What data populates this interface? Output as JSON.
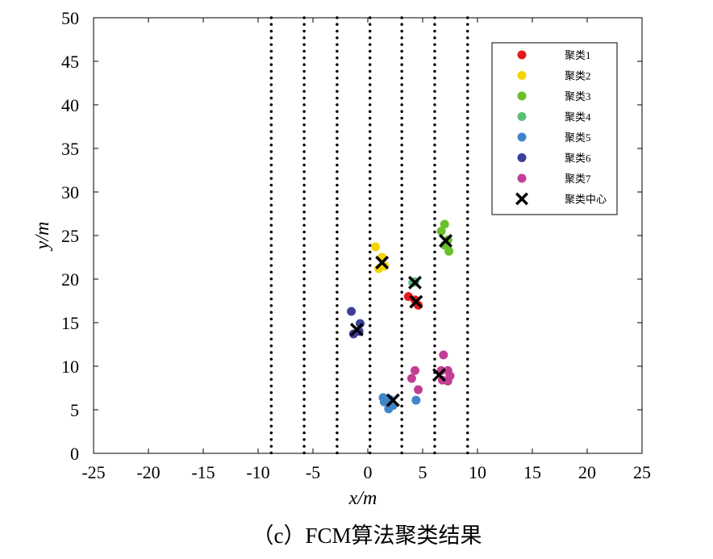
{
  "chart_data": {
    "type": "scatter",
    "title": "",
    "caption": "（c）FCM算法聚类结果",
    "xlabel": "x/m",
    "ylabel": "y/m",
    "xlim": [
      -25,
      25
    ],
    "ylim": [
      0,
      50
    ],
    "xticks": [
      "-25",
      "-20",
      "-15",
      "-10",
      "-5",
      "0",
      "5",
      "10",
      "15",
      "20",
      "25"
    ],
    "yticks": [
      "0",
      "5",
      "10",
      "15",
      "20",
      "25",
      "30",
      "35",
      "40",
      "45",
      "50"
    ],
    "grid": false,
    "legend_position": "top-right",
    "vertical_dotted_lines_x": [
      -8.8,
      -5.8,
      -2.8,
      0.2,
      3.1,
      6.1,
      9.1
    ],
    "series": [
      {
        "name": "聚类1",
        "color": "#e41a1c",
        "marker": "circle",
        "points": [
          [
            3.7,
            18.0
          ],
          [
            4.6,
            17.0
          ],
          [
            4.3,
            17.6
          ]
        ]
      },
      {
        "name": "聚类2",
        "color": "#f5d400",
        "marker": "circle",
        "points": [
          [
            0.7,
            23.7
          ],
          [
            1.3,
            22.5
          ],
          [
            1.0,
            21.2
          ],
          [
            1.5,
            21.5
          ]
        ]
      },
      {
        "name": "聚类3",
        "color": "#6abf2c",
        "marker": "circle",
        "points": [
          [
            7.0,
            26.3
          ],
          [
            6.7,
            25.5
          ],
          [
            7.3,
            24.5
          ],
          [
            7.0,
            23.9
          ],
          [
            7.4,
            23.2
          ]
        ]
      },
      {
        "name": "聚类4",
        "color": "#5cc07a",
        "marker": "circle",
        "points": [
          [
            4.3,
            19.7
          ],
          [
            4.1,
            19.6
          ]
        ]
      },
      {
        "name": "聚类5",
        "color": "#3f86c8",
        "marker": "circle",
        "points": [
          [
            1.4,
            6.4
          ],
          [
            2.0,
            6.2
          ],
          [
            1.5,
            5.9
          ],
          [
            1.9,
            5.1
          ],
          [
            2.3,
            5.5
          ],
          [
            4.4,
            6.1
          ]
        ]
      },
      {
        "name": "聚类6",
        "color": "#3b3f9a",
        "marker": "circle",
        "points": [
          [
            -1.5,
            16.3
          ],
          [
            -0.7,
            14.9
          ],
          [
            -1.3,
            13.7
          ],
          [
            -0.8,
            14.0
          ]
        ]
      },
      {
        "name": "聚类7",
        "color": "#c23e94",
        "marker": "circle",
        "points": [
          [
            6.9,
            11.3
          ],
          [
            4.3,
            9.5
          ],
          [
            6.7,
            9.5
          ],
          [
            7.3,
            9.5
          ],
          [
            4.0,
            8.6
          ],
          [
            7.5,
            8.9
          ],
          [
            6.8,
            8.4
          ],
          [
            7.3,
            8.3
          ],
          [
            4.6,
            7.3
          ]
        ]
      },
      {
        "name": "聚类中心",
        "color": "#000000",
        "marker": "x",
        "points": [
          [
            4.4,
            17.4
          ],
          [
            1.3,
            21.9
          ],
          [
            7.1,
            24.4
          ],
          [
            4.3,
            19.6
          ],
          [
            2.3,
            6.1
          ],
          [
            -1.0,
            14.2
          ],
          [
            6.5,
            9.0
          ]
        ]
      }
    ]
  }
}
